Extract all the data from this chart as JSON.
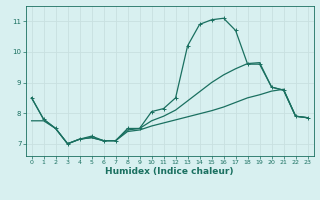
{
  "title": "",
  "xlabel": "Humidex (Indice chaleur)",
  "ylabel": "",
  "bg_color": "#d8f0f0",
  "grid_color": "#c8e0e0",
  "line_color": "#1a7060",
  "xlim": [
    -0.5,
    23.5
  ],
  "ylim": [
    6.6,
    11.5
  ],
  "yticks": [
    7,
    8,
    9,
    10,
    11
  ],
  "xticks": [
    0,
    1,
    2,
    3,
    4,
    5,
    6,
    7,
    8,
    9,
    10,
    11,
    12,
    13,
    14,
    15,
    16,
    17,
    18,
    19,
    20,
    21,
    22,
    23
  ],
  "series1_x": [
    0,
    1,
    2,
    3,
    4,
    5,
    6,
    7,
    8,
    9,
    10,
    11,
    12,
    13,
    14,
    15,
    16,
    17,
    18,
    19,
    20,
    21,
    22,
    23
  ],
  "series1_y": [
    8.5,
    7.8,
    7.5,
    7.0,
    7.15,
    7.25,
    7.1,
    7.1,
    7.5,
    7.5,
    8.05,
    8.15,
    8.5,
    10.2,
    10.9,
    11.05,
    11.1,
    10.7,
    9.6,
    9.6,
    8.85,
    8.75,
    7.9,
    7.85
  ],
  "series2_x": [
    0,
    1,
    2,
    3,
    4,
    5,
    6,
    7,
    8,
    9,
    10,
    11,
    12,
    13,
    14,
    15,
    16,
    17,
    18,
    19,
    20,
    21,
    22,
    23
  ],
  "series2_y": [
    8.5,
    7.8,
    7.5,
    7.0,
    7.15,
    7.2,
    7.1,
    7.1,
    7.45,
    7.5,
    7.75,
    7.9,
    8.1,
    8.4,
    8.7,
    9.0,
    9.25,
    9.45,
    9.62,
    9.65,
    8.85,
    8.75,
    7.9,
    7.85
  ],
  "series3_x": [
    0,
    1,
    2,
    3,
    4,
    5,
    6,
    7,
    8,
    9,
    10,
    11,
    12,
    13,
    14,
    15,
    16,
    17,
    18,
    19,
    20,
    21,
    22,
    23
  ],
  "series3_y": [
    7.75,
    7.75,
    7.5,
    7.0,
    7.15,
    7.2,
    7.1,
    7.1,
    7.4,
    7.45,
    7.58,
    7.68,
    7.78,
    7.88,
    7.98,
    8.08,
    8.2,
    8.35,
    8.5,
    8.6,
    8.72,
    8.78,
    7.9,
    7.85
  ]
}
